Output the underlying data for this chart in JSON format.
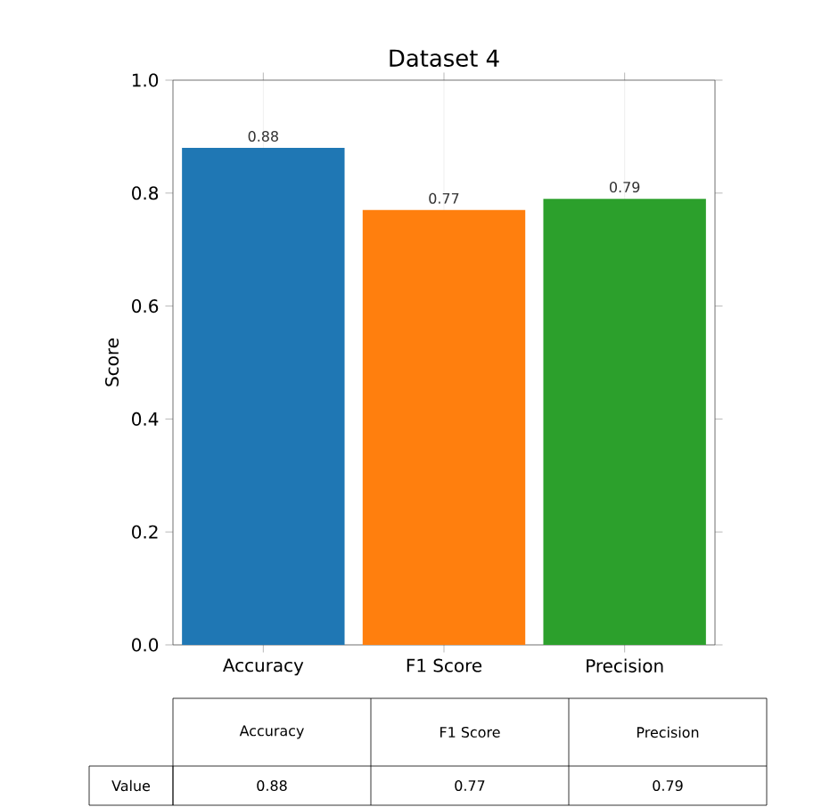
{
  "chart_data": {
    "type": "bar",
    "title": "Dataset 4",
    "ylabel": "Score",
    "categories": [
      "Accuracy",
      "F1 Score",
      "Precision"
    ],
    "values": [
      0.88,
      0.77,
      0.79
    ],
    "colors": [
      "#1f77b4",
      "#ff7f0e",
      "#2ca02c"
    ],
    "value_labels": [
      "0.88",
      "0.77",
      "0.79"
    ],
    "ylim": [
      0,
      1.0
    ],
    "yticks": [
      {
        "value": 0,
        "label": "0.0"
      },
      {
        "value": 0.2,
        "label": "0.2"
      },
      {
        "value": 0.4,
        "label": "0.4"
      },
      {
        "value": 0.6,
        "label": "0.6"
      },
      {
        "value": 0.8,
        "label": "0.8"
      },
      {
        "value": 1.0,
        "label": "1.0"
      }
    ],
    "grid": "x",
    "annotations": [
      "Value"
    ]
  }
}
